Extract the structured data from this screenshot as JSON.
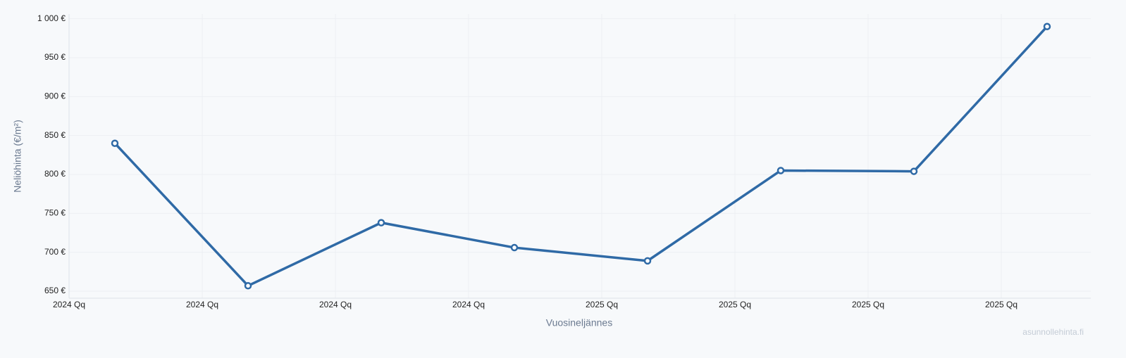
{
  "chart_data": {
    "type": "line",
    "y_label": "Neliöhinta (€/m²)",
    "x_label": "Vuosineljännes",
    "watermark": "asunnollehinta.fi",
    "categories": [
      "2024 Qq",
      "2024 Qq",
      "2024 Qq",
      "2024 Qq",
      "2025 Qq",
      "2025 Qq",
      "2025 Qq",
      "2025 Qq"
    ],
    "series": [
      {
        "color": "#2f6aa6",
        "values": [
          840,
          657,
          738,
          706,
          689,
          805,
          804,
          990
        ]
      }
    ],
    "ylim": [
      641,
      1006
    ],
    "yticks": [
      {
        "value": 650,
        "label": "650 €"
      },
      {
        "value": 700,
        "label": "700 €"
      },
      {
        "value": 750,
        "label": "750 €"
      },
      {
        "value": 800,
        "label": "800 €"
      },
      {
        "value": 850,
        "label": "850 €"
      },
      {
        "value": 900,
        "label": "900 €"
      },
      {
        "value": 950,
        "label": "950 €"
      },
      {
        "value": 1000,
        "label": "1 000 €"
      }
    ],
    "grid": true
  }
}
